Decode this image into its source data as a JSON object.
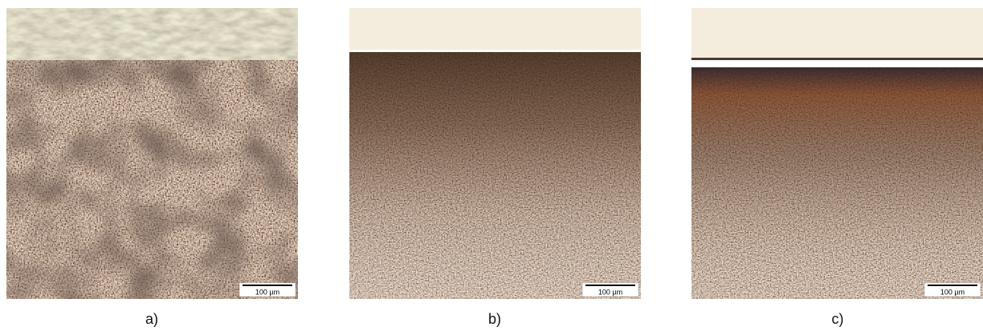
{
  "panels": [
    {
      "label": "a)",
      "scale_bar": "100 µm"
    },
    {
      "label": "b)",
      "scale_bar": "100 µm"
    },
    {
      "label": "c)",
      "scale_bar": "100 µm"
    }
  ]
}
